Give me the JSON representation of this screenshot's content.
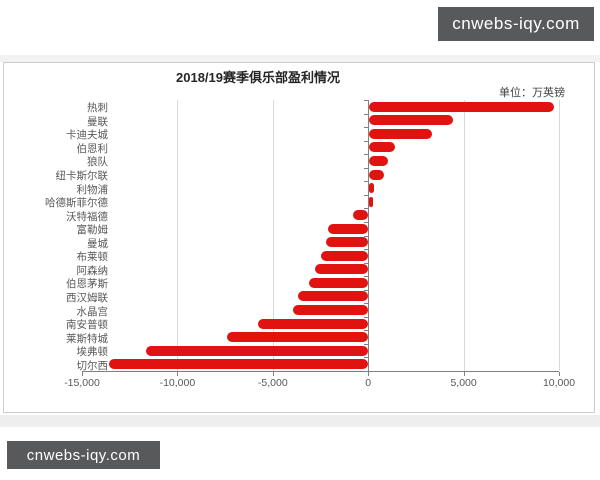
{
  "watermark_top": "cnwebs-iqy.com",
  "watermark_bottom": "cnwebs-iqy.com",
  "chart_data": {
    "type": "bar",
    "orientation": "horizontal",
    "title": "2018/19赛季俱乐部盈利情况",
    "unit_label": "单位：万英镑",
    "categories": [
      "热刺",
      "曼联",
      "卡迪夫城",
      "伯恩利",
      "狼队",
      "纽卡斯尔联",
      "利物浦",
      "哈德斯菲尔德",
      "沃特福德",
      "富勒姆",
      "曼城",
      "布莱顿",
      "阿森纳",
      "伯恩茅斯",
      "西汉姆联",
      "水晶宫",
      "南安普顿",
      "莱斯特城",
      "埃弗顿",
      "切尔西"
    ],
    "values": [
      9700,
      4400,
      3300,
      1350,
      1000,
      800,
      250,
      150,
      -800,
      -2100,
      -2200,
      -2500,
      -2800,
      -3100,
      -3700,
      -3950,
      -5800,
      -7400,
      -11650,
      -13600
    ],
    "xlim": [
      -15000,
      10000
    ],
    "x_tick_values": [
      -15000,
      -10000,
      -5000,
      0,
      5000,
      10000
    ],
    "x_tick_labels": [
      "-15,000",
      "-10,000",
      "-5,000",
      "0",
      "5,000",
      "10,000"
    ],
    "bar_color": "#e01310",
    "grid_color": "#d9d9d9",
    "axis_color": "#808080",
    "legend": "none",
    "grid": true
  }
}
